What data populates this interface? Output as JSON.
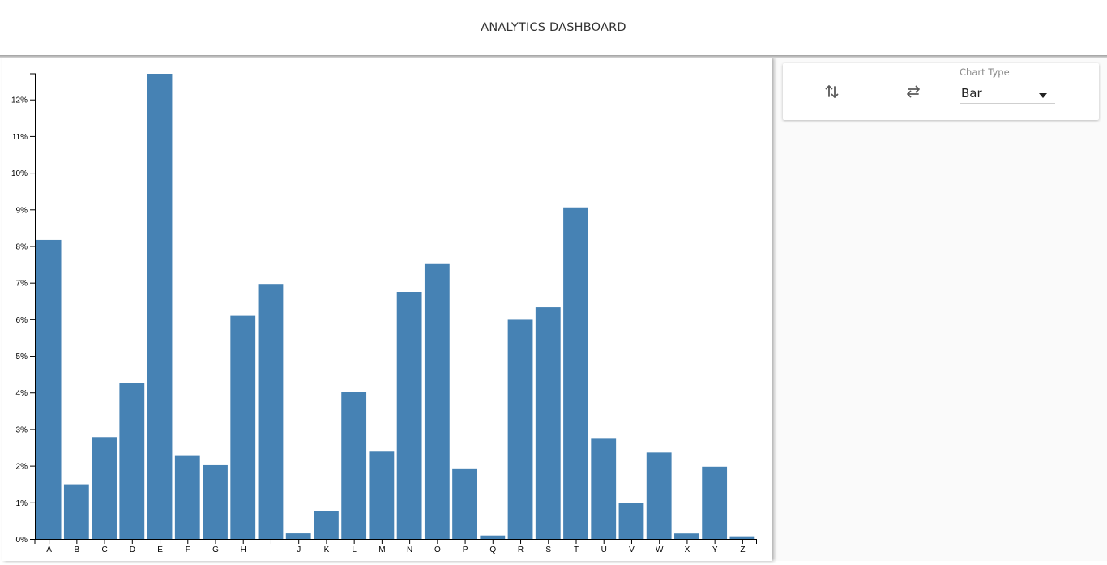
{
  "header": {
    "title": "ANALYTICS DASHBOARD"
  },
  "controls": {
    "sort_icon": "swap-vertical-icon",
    "swap_icon": "swap-horizontal-icon",
    "chart_type_label": "Chart Type",
    "chart_type_value": "Bar"
  },
  "colors": {
    "bar": "#4682b4",
    "axis": "#000000"
  },
  "chart_data": {
    "type": "bar",
    "categories": [
      "A",
      "B",
      "C",
      "D",
      "E",
      "F",
      "G",
      "H",
      "I",
      "J",
      "K",
      "L",
      "M",
      "N",
      "O",
      "P",
      "Q",
      "R",
      "S",
      "T",
      "U",
      "V",
      "W",
      "X",
      "Y",
      "Z"
    ],
    "values": [
      8.167,
      1.492,
      2.782,
      4.253,
      12.702,
      2.288,
      2.015,
      6.094,
      6.966,
      0.153,
      0.772,
      4.025,
      2.406,
      6.749,
      7.507,
      1.929,
      0.095,
      5.987,
      6.327,
      9.056,
      2.758,
      0.978,
      2.36,
      0.15,
      1.974,
      0.074
    ],
    "y_ticks": [
      "0%",
      "1%",
      "2%",
      "3%",
      "4%",
      "5%",
      "6%",
      "7%",
      "8%",
      "9%",
      "10%",
      "11%",
      "12%"
    ],
    "ylim": [
      0,
      12.702
    ],
    "title": "",
    "xlabel": "",
    "ylabel": "",
    "grid": false,
    "legend": "none"
  }
}
